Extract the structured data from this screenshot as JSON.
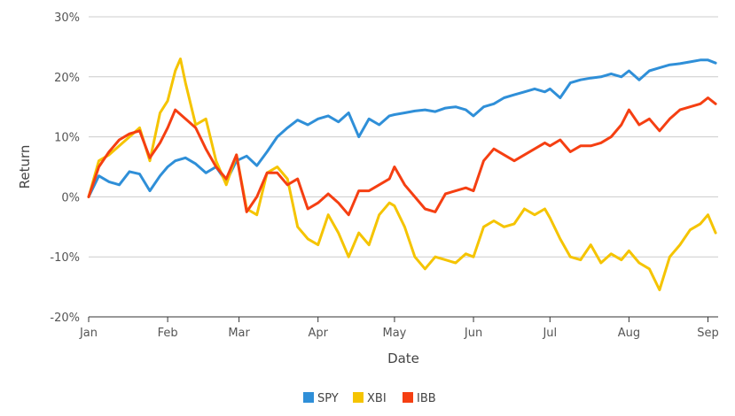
{
  "chart_data": {
    "type": "line",
    "xlabel": "Date",
    "ylabel": "Return",
    "ylim": [
      -20,
      30
    ],
    "y_ticks": [
      -20,
      -10,
      0,
      10,
      20,
      30
    ],
    "y_tick_labels": [
      "-20%",
      "-10%",
      "0%",
      "10%",
      "20%",
      "30%"
    ],
    "x_tick_labels": [
      "Jan",
      "Feb",
      "Mar",
      "Apr",
      "May",
      "Jun",
      "Jul",
      "Aug",
      "Sep"
    ],
    "x_tick_positions": [
      0,
      31,
      59,
      90,
      120,
      151,
      181,
      212,
      243
    ],
    "x_range": [
      0,
      247
    ],
    "grid": true,
    "legend_position": "bottom",
    "series": [
      {
        "name": "SPY",
        "color": "#2f8fd8",
        "x": [
          0,
          4,
          8,
          12,
          16,
          20,
          24,
          28,
          31,
          34,
          38,
          42,
          46,
          50,
          54,
          58,
          62,
          66,
          70,
          74,
          78,
          82,
          86,
          90,
          94,
          98,
          102,
          106,
          110,
          114,
          118,
          120,
          124,
          128,
          132,
          136,
          140,
          144,
          148,
          151,
          155,
          159,
          163,
          167,
          171,
          175,
          179,
          181,
          185,
          189,
          193,
          197,
          201,
          205,
          209,
          212,
          216,
          220,
          224,
          228,
          232,
          236,
          240,
          243,
          246
        ],
        "values": [
          0,
          3.5,
          2.5,
          2.0,
          4.2,
          3.8,
          1.0,
          3.5,
          5.0,
          6.0,
          6.5,
          5.5,
          4.0,
          5.0,
          2.5,
          6.0,
          6.8,
          5.2,
          7.5,
          10.0,
          11.5,
          12.8,
          12.0,
          13.0,
          13.5,
          12.5,
          14.0,
          10.0,
          13.0,
          12.0,
          13.5,
          13.7,
          14.0,
          14.3,
          14.5,
          14.2,
          14.8,
          15.0,
          14.5,
          13.5,
          15.0,
          15.5,
          16.5,
          17.0,
          17.5,
          18.0,
          17.5,
          18.0,
          16.5,
          19.0,
          19.5,
          19.8,
          20.0,
          20.5,
          20.0,
          21.0,
          19.5,
          21.0,
          21.5,
          22.0,
          22.2,
          22.5,
          22.8,
          22.8,
          22.3
        ]
      },
      {
        "name": "XBI",
        "color": "#f5c400",
        "x": [
          0,
          4,
          8,
          12,
          16,
          20,
          24,
          28,
          31,
          34,
          36,
          38,
          42,
          46,
          50,
          54,
          58,
          62,
          66,
          70,
          74,
          78,
          82,
          86,
          90,
          94,
          98,
          102,
          106,
          110,
          114,
          118,
          120,
          124,
          128,
          132,
          136,
          140,
          144,
          148,
          151,
          155,
          159,
          163,
          167,
          171,
          175,
          179,
          181,
          185,
          189,
          193,
          197,
          201,
          205,
          209,
          212,
          216,
          220,
          224,
          228,
          232,
          236,
          240,
          243,
          246
        ],
        "values": [
          0,
          6.0,
          7.0,
          8.5,
          10.0,
          11.5,
          6.0,
          14.0,
          16.0,
          21.0,
          23.0,
          19.0,
          12.0,
          13.0,
          6.0,
          2.0,
          7.0,
          -2.0,
          -3.0,
          4.0,
          5.0,
          3.0,
          -5.0,
          -7.0,
          -8.0,
          -3.0,
          -6.0,
          -10.0,
          -6.0,
          -8.0,
          -3.0,
          -1.0,
          -1.5,
          -5.0,
          -10.0,
          -12.0,
          -10.0,
          -10.5,
          -11.0,
          -9.5,
          -10.0,
          -5.0,
          -4.0,
          -5.0,
          -4.5,
          -2.0,
          -3.0,
          -2.0,
          -3.5,
          -7.0,
          -10.0,
          -10.5,
          -8.0,
          -11.0,
          -9.5,
          -10.5,
          -9.0,
          -11.0,
          -12.0,
          -15.5,
          -10.0,
          -8.0,
          -5.5,
          -4.5,
          -3.0,
          -6.0
        ]
      },
      {
        "name": "IBB",
        "color": "#f53f12",
        "x": [
          0,
          4,
          8,
          12,
          16,
          20,
          24,
          28,
          31,
          34,
          38,
          42,
          46,
          50,
          54,
          58,
          62,
          66,
          70,
          74,
          78,
          82,
          86,
          90,
          94,
          98,
          102,
          106,
          110,
          114,
          118,
          120,
          124,
          128,
          132,
          136,
          140,
          144,
          148,
          151,
          155,
          159,
          163,
          167,
          171,
          175,
          179,
          181,
          185,
          189,
          193,
          197,
          201,
          205,
          209,
          212,
          216,
          220,
          224,
          228,
          232,
          236,
          240,
          243,
          246
        ],
        "values": [
          0,
          5.0,
          7.5,
          9.5,
          10.5,
          11.0,
          6.5,
          9.0,
          11.5,
          14.5,
          13.0,
          11.5,
          8.0,
          5.0,
          3.0,
          7.0,
          -2.5,
          0.0,
          4.0,
          4.0,
          2.0,
          3.0,
          -2.0,
          -1.0,
          0.5,
          -1.0,
          -3.0,
          1.0,
          1.0,
          2.0,
          3.0,
          5.0,
          2.0,
          0.0,
          -2.0,
          -2.5,
          0.5,
          1.0,
          1.5,
          1.0,
          6.0,
          8.0,
          7.0,
          6.0,
          7.0,
          8.0,
          9.0,
          8.5,
          9.5,
          7.5,
          8.5,
          8.5,
          9.0,
          10.0,
          12.0,
          14.5,
          12.0,
          13.0,
          11.0,
          13.0,
          14.5,
          15.0,
          15.5,
          16.5,
          15.5
        ]
      }
    ]
  }
}
